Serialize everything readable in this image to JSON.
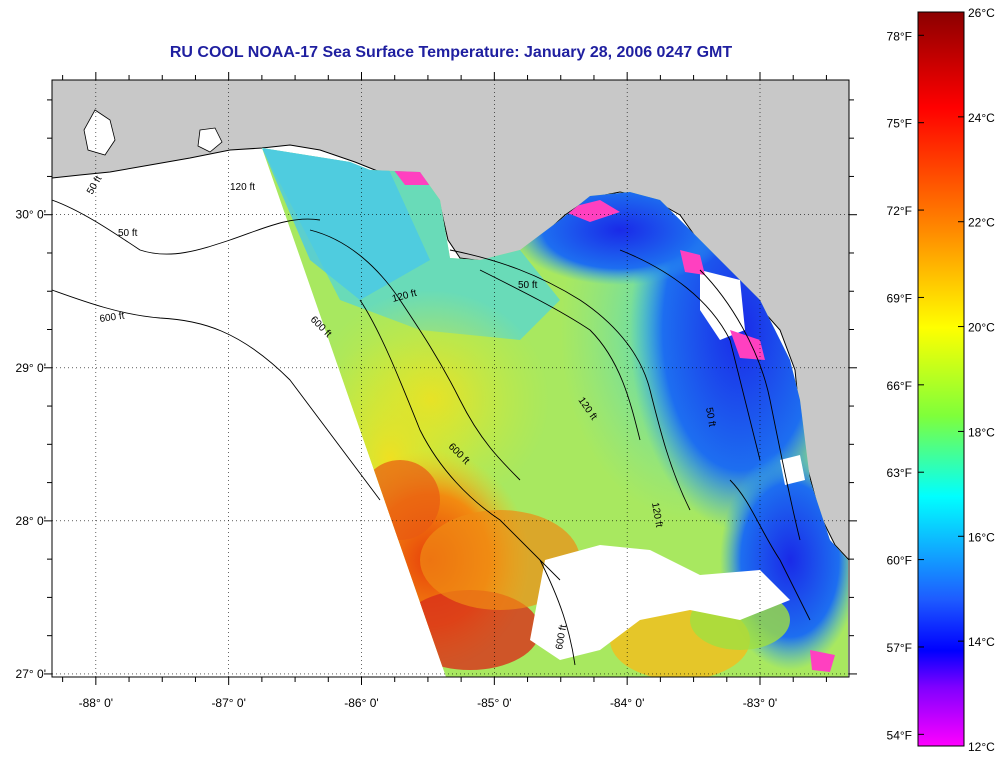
{
  "title": "RU COOL  NOAA-17  Sea Surface Temperature:  January 28, 2006 0247 GMT",
  "colors": {
    "land": "#c8c8c8",
    "no_data": "#ffffff",
    "title": "#1f1fa0"
  },
  "axes": {
    "x_labels": [
      "-88° 0'",
      "-87° 0'",
      "-86° 0'",
      "-85° 0'",
      "-84° 0'",
      "-83° 0'"
    ],
    "x_values": [
      -88,
      -87,
      -86,
      -85,
      -84,
      -83
    ],
    "y_labels": [
      "30° 0'",
      "29° 0'",
      "28° 0'",
      "27° 0'"
    ],
    "y_values": [
      30,
      29,
      28,
      27
    ],
    "lon_range": [
      -88.33,
      -82.33
    ],
    "lat_range": [
      26.98,
      30.88
    ]
  },
  "contour_labels": [
    "50 ft",
    "120 ft",
    "600 ft",
    "50 ft",
    "120 ft",
    "600 ft",
    "50 ft",
    "120 ft",
    "600 ft",
    "120 ft",
    "50 ft",
    "600 ft"
  ],
  "colorbar": {
    "celsius_labels": [
      "26°C",
      "24°C",
      "22°C",
      "20°C",
      "18°C",
      "16°C",
      "14°C",
      "12°C"
    ],
    "celsius_values": [
      26,
      24,
      22,
      20,
      18,
      16,
      14,
      12
    ],
    "fahrenheit_labels": [
      "78°F",
      "75°F",
      "72°F",
      "69°F",
      "66°F",
      "63°F",
      "60°F",
      "57°F",
      "54°F"
    ],
    "fahrenheit_values": [
      78,
      75,
      72,
      69,
      66,
      63,
      60,
      57,
      54
    ],
    "range_c": [
      12,
      26
    ],
    "stops": [
      "#8b0000",
      "#ff0000",
      "#ff8c00",
      "#ffff00",
      "#7fff00",
      "#00ffff",
      "#0000ff",
      "#8000ff",
      "#ff00ff"
    ]
  }
}
